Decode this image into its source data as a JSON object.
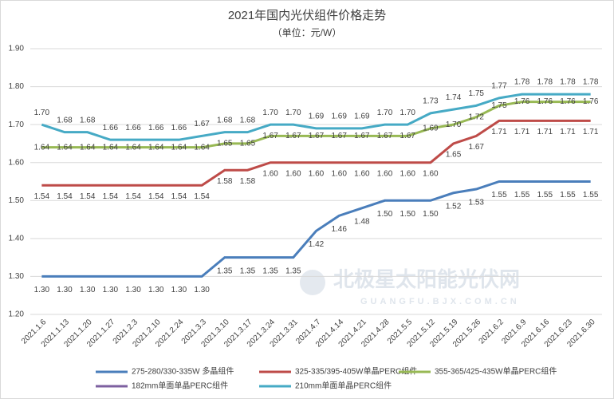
{
  "chart_data": {
    "type": "line",
    "title": "2021年国内光伏组件价格走势",
    "subtitle": "（单位：元/W）",
    "watermark": {
      "title": "北极星太阳能光伏网",
      "subtitle": "GUANGFU.BJX.COM.CN"
    },
    "categories": [
      "2021.1.6",
      "2021.1.13",
      "2021.1.20",
      "2021.1.27",
      "2021.2.3",
      "2021.2.10",
      "2021.2.24",
      "2021.3.3",
      "2021.3.10",
      "2021.3.17",
      "2021.3.24",
      "2021.3.31",
      "2021.4.7",
      "2021.4.14",
      "2021.4.21",
      "2021.4.28",
      "2021.5.5",
      "2021.5.12",
      "2021.5.19",
      "2021.5.26",
      "2021.6.2",
      "2021.6.9",
      "2021.6.16",
      "2021.6.23",
      "2021.6.30"
    ],
    "ylim": [
      1.2,
      1.9
    ],
    "yticks": [
      {
        "value": 1.2,
        "label": "1.20"
      },
      {
        "value": 1.3,
        "label": "1.30"
      },
      {
        "value": 1.4,
        "label": "1.40"
      },
      {
        "value": 1.5,
        "label": "1.50"
      },
      {
        "value": 1.6,
        "label": "1.60"
      },
      {
        "value": 1.7,
        "label": "1.70"
      },
      {
        "value": 1.8,
        "label": "1.80"
      },
      {
        "value": 1.9,
        "label": "1.90"
      }
    ],
    "grid": true,
    "legend": "bottom",
    "series": [
      {
        "name": "275-280/330-335W 多晶组件",
        "color": "#4a7ebb",
        "values": [
          1.3,
          1.3,
          1.3,
          1.3,
          1.3,
          1.3,
          1.3,
          1.3,
          1.35,
          1.35,
          1.35,
          1.35,
          1.42,
          1.46,
          1.48,
          1.5,
          1.5,
          1.5,
          1.52,
          1.53,
          1.55,
          1.55,
          1.55,
          1.55,
          1.55
        ],
        "value_labels": [
          "1.30",
          "1.30",
          "1.30",
          "1.30",
          "1.30",
          "1.30",
          "1.30",
          "1.30",
          "1.35",
          "1.35",
          "1.35",
          "1.35",
          "1.42",
          "1.46",
          "1.48",
          "1.50",
          "1.50",
          "1.50",
          "1.52",
          "1.53",
          "1.55",
          "1.55",
          "1.55",
          "1.55",
          "1.55"
        ]
      },
      {
        "name": "325-335/395-405W单晶PERC组件",
        "color": "#be4b48",
        "values": [
          1.54,
          1.54,
          1.54,
          1.54,
          1.54,
          1.54,
          1.54,
          1.54,
          1.58,
          1.58,
          1.6,
          1.6,
          1.6,
          1.6,
          1.6,
          1.6,
          1.6,
          1.6,
          1.65,
          1.67,
          1.71,
          1.71,
          1.71,
          1.71,
          1.71
        ],
        "value_labels": [
          "1.54",
          "1.54",
          "1.54",
          "1.54",
          "1.54",
          "1.54",
          "1.54",
          "1.54",
          "1.58",
          "1.58",
          "1.60",
          "1.60",
          "1.60",
          "1.60",
          "1.60",
          "1.60",
          "1.60",
          "1.60",
          "1.65",
          "1.67",
          "1.71",
          "1.71",
          "1.71",
          "1.71",
          "1.71"
        ]
      },
      {
        "name": "355-365/425-435W单晶PERC组件",
        "color": "#98b954",
        "values": [
          1.64,
          1.64,
          1.64,
          1.64,
          1.64,
          1.64,
          1.64,
          1.64,
          1.65,
          1.65,
          1.67,
          1.67,
          1.67,
          1.67,
          1.67,
          1.67,
          1.67,
          1.69,
          1.7,
          1.72,
          1.75,
          1.76,
          1.76,
          1.76,
          1.76
        ],
        "value_labels": [
          "1.64",
          "1.64",
          "1.64",
          "1.64",
          "1.64",
          "1.64",
          "1.64",
          "1.64",
          "1.65",
          "1.65",
          "1.67",
          "1.67",
          "1.67",
          "1.67",
          "1.67",
          "1.67",
          "1.67",
          "1.69",
          "1.70",
          "1.72",
          "1.75",
          "1.76",
          "1.76",
          "1.76",
          "1.76"
        ]
      },
      {
        "name": "182mm单面单晶PERC组件",
        "color": "#7d60a0",
        "values": [
          null,
          null,
          null,
          null,
          null,
          null,
          null,
          null,
          null,
          null,
          null,
          null,
          null,
          null,
          null,
          null,
          null,
          null,
          null,
          null,
          null,
          null,
          null,
          null,
          null
        ]
      },
      {
        "name": "210mm单面单晶PERC组件",
        "color": "#46aac5",
        "values": [
          1.7,
          1.68,
          1.68,
          1.66,
          1.66,
          1.66,
          1.66,
          1.67,
          1.68,
          1.68,
          1.7,
          1.7,
          1.69,
          1.69,
          1.69,
          1.7,
          1.7,
          1.73,
          1.74,
          1.75,
          1.77,
          1.78,
          1.78,
          1.78,
          1.78
        ],
        "value_labels": [
          "1.70",
          "1.68",
          "1.68",
          "1.66",
          "1.66",
          "1.66",
          "1.66",
          "1.67",
          "1.68",
          "1.68",
          "1.70",
          "1.70",
          "1.69",
          "1.69",
          "1.69",
          "1.70",
          "1.70",
          "1.73",
          "1.74",
          "1.75",
          "1.77",
          "1.78",
          "1.78",
          "1.78",
          "1.78"
        ]
      }
    ]
  }
}
